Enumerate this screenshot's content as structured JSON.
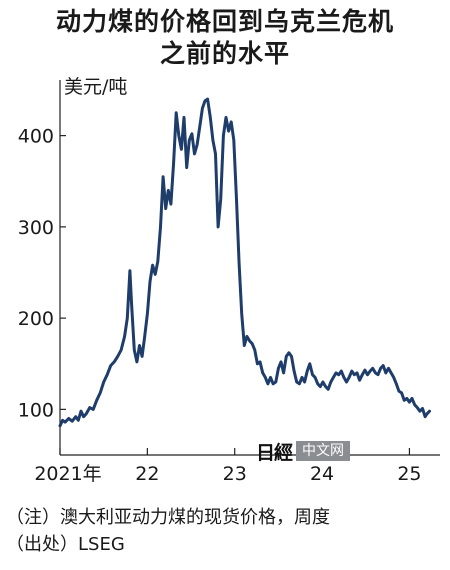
{
  "title_line1": "动力煤的价格回到乌克兰危机",
  "title_line2": "之前的水平",
  "unit": "美元/吨",
  "note": "（注）澳大利亚动力煤的现货价格，周度",
  "source": "（出处）LSEG",
  "logo": {
    "mark": "日經",
    "box": "中文网"
  },
  "colors": {
    "line": "#1f3d6b",
    "axis": "#222222"
  },
  "chart_data": {
    "type": "line",
    "x_ticks": [
      "2021年",
      "22",
      "23",
      "24",
      "25"
    ],
    "y_ticks": [
      100,
      200,
      300,
      400
    ],
    "ylim": [
      50,
      450
    ],
    "xlim": [
      2021.0,
      2025.35
    ],
    "grid": false,
    "series": [
      {
        "values": [
          [
            2021.0,
            82
          ],
          [
            2021.03,
            88
          ],
          [
            2021.06,
            86
          ],
          [
            2021.1,
            90
          ],
          [
            2021.14,
            87
          ],
          [
            2021.18,
            92
          ],
          [
            2021.21,
            88
          ],
          [
            2021.24,
            98
          ],
          [
            2021.27,
            92
          ],
          [
            2021.3,
            95
          ],
          [
            2021.34,
            102
          ],
          [
            2021.38,
            100
          ],
          [
            2021.42,
            110
          ],
          [
            2021.46,
            118
          ],
          [
            2021.5,
            130
          ],
          [
            2021.54,
            138
          ],
          [
            2021.58,
            148
          ],
          [
            2021.62,
            152
          ],
          [
            2021.66,
            158
          ],
          [
            2021.7,
            165
          ],
          [
            2021.74,
            180
          ],
          [
            2021.77,
            200
          ],
          [
            2021.8,
            252
          ],
          [
            2021.82,
            215
          ],
          [
            2021.85,
            165
          ],
          [
            2021.88,
            152
          ],
          [
            2021.91,
            170
          ],
          [
            2021.94,
            158
          ],
          [
            2021.97,
            180
          ],
          [
            2022.0,
            205
          ],
          [
            2022.03,
            240
          ],
          [
            2022.06,
            258
          ],
          [
            2022.09,
            248
          ],
          [
            2022.12,
            262
          ],
          [
            2022.15,
            300
          ],
          [
            2022.18,
            355
          ],
          [
            2022.21,
            320
          ],
          [
            2022.24,
            340
          ],
          [
            2022.27,
            325
          ],
          [
            2022.3,
            370
          ],
          [
            2022.33,
            425
          ],
          [
            2022.36,
            400
          ],
          [
            2022.39,
            385
          ],
          [
            2022.42,
            420
          ],
          [
            2022.45,
            365
          ],
          [
            2022.48,
            395
          ],
          [
            2022.51,
            402
          ],
          [
            2022.54,
            380
          ],
          [
            2022.57,
            390
          ],
          [
            2022.6,
            410
          ],
          [
            2022.63,
            430
          ],
          [
            2022.66,
            438
          ],
          [
            2022.69,
            440
          ],
          [
            2022.72,
            420
          ],
          [
            2022.75,
            395
          ],
          [
            2022.78,
            380
          ],
          [
            2022.81,
            300
          ],
          [
            2022.84,
            330
          ],
          [
            2022.87,
            400
          ],
          [
            2022.9,
            420
          ],
          [
            2022.93,
            405
          ],
          [
            2022.96,
            415
          ],
          [
            2022.99,
            395
          ],
          [
            2023.02,
            330
          ],
          [
            2023.05,
            260
          ],
          [
            2023.08,
            205
          ],
          [
            2023.11,
            170
          ],
          [
            2023.14,
            180
          ],
          [
            2023.17,
            175
          ],
          [
            2023.2,
            172
          ],
          [
            2023.23,
            165
          ],
          [
            2023.26,
            150
          ],
          [
            2023.29,
            152
          ],
          [
            2023.32,
            140
          ],
          [
            2023.35,
            135
          ],
          [
            2023.38,
            128
          ],
          [
            2023.41,
            135
          ],
          [
            2023.44,
            128
          ],
          [
            2023.47,
            130
          ],
          [
            2023.5,
            145
          ],
          [
            2023.53,
            152
          ],
          [
            2023.56,
            140
          ],
          [
            2023.59,
            158
          ],
          [
            2023.62,
            162
          ],
          [
            2023.65,
            158
          ],
          [
            2023.68,
            142
          ],
          [
            2023.71,
            130
          ],
          [
            2023.74,
            128
          ],
          [
            2023.77,
            135
          ],
          [
            2023.8,
            130
          ],
          [
            2023.83,
            142
          ],
          [
            2023.86,
            150
          ],
          [
            2023.89,
            138
          ],
          [
            2023.92,
            135
          ],
          [
            2023.95,
            128
          ],
          [
            2023.98,
            125
          ],
          [
            2024.01,
            130
          ],
          [
            2024.04,
            125
          ],
          [
            2024.07,
            122
          ],
          [
            2024.1,
            130
          ],
          [
            2024.13,
            135
          ],
          [
            2024.16,
            140
          ],
          [
            2024.19,
            138
          ],
          [
            2024.22,
            142
          ],
          [
            2024.25,
            135
          ],
          [
            2024.28,
            130
          ],
          [
            2024.31,
            135
          ],
          [
            2024.34,
            142
          ],
          [
            2024.37,
            138
          ],
          [
            2024.4,
            140
          ],
          [
            2024.43,
            132
          ],
          [
            2024.46,
            138
          ],
          [
            2024.49,
            143
          ],
          [
            2024.52,
            138
          ],
          [
            2024.55,
            142
          ],
          [
            2024.58,
            145
          ],
          [
            2024.61,
            140
          ],
          [
            2024.64,
            138
          ],
          [
            2024.67,
            145
          ],
          [
            2024.7,
            148
          ],
          [
            2024.73,
            140
          ],
          [
            2024.76,
            145
          ],
          [
            2024.79,
            140
          ],
          [
            2024.82,
            135
          ],
          [
            2024.85,
            128
          ],
          [
            2024.88,
            120
          ],
          [
            2024.91,
            118
          ],
          [
            2024.94,
            110
          ],
          [
            2024.97,
            112
          ],
          [
            2025.0,
            108
          ],
          [
            2025.03,
            112
          ],
          [
            2025.06,
            105
          ],
          [
            2025.09,
            102
          ],
          [
            2025.12,
            98
          ],
          [
            2025.15,
            101
          ],
          [
            2025.18,
            92
          ],
          [
            2025.2,
            95
          ],
          [
            2025.23,
            98
          ]
        ]
      }
    ]
  }
}
